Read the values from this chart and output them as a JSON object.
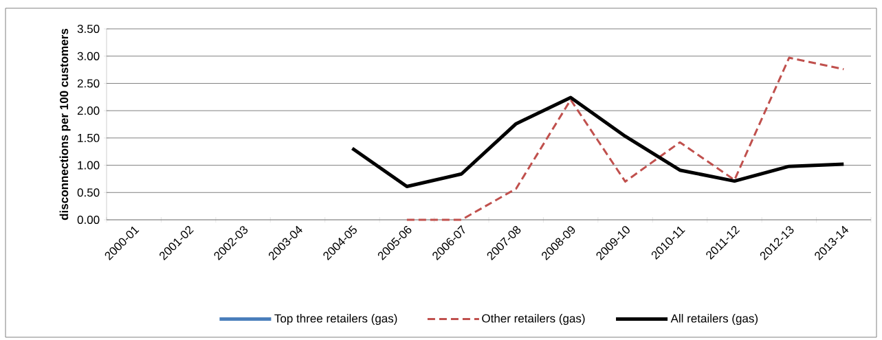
{
  "chart_data": {
    "type": "line",
    "ylabel": "disconnections per 100 customers",
    "categories": [
      "2000-01",
      "2001-02",
      "2002-03",
      "2003-04",
      "2004-05",
      "2005-06",
      "2006-07",
      "2007-08",
      "2008-09",
      "2009-10",
      "2010-11",
      "2011-12",
      "2012-13",
      "2013-14"
    ],
    "series": [
      {
        "name": "Top three retailers (gas)",
        "color": "#4a7ebb",
        "line_style": "solid",
        "values": [
          null,
          null,
          null,
          null,
          null,
          null,
          null,
          null,
          null,
          null,
          null,
          null,
          null,
          null
        ]
      },
      {
        "name": "Other retailers (gas)",
        "color": "#c0504d",
        "line_style": "dashed",
        "values": [
          null,
          null,
          null,
          null,
          null,
          0,
          0,
          0.57,
          2.2,
          0.7,
          1.42,
          0.73,
          2.97,
          2.76
        ]
      },
      {
        "name": "All retailers (gas)",
        "color": "#000000",
        "line_style": "solid",
        "values": [
          null,
          null,
          null,
          null,
          1.31,
          0.61,
          0.84,
          1.76,
          2.24,
          1.53,
          0.91,
          0.71,
          0.98,
          1.02
        ]
      }
    ],
    "ylim": [
      0,
      3.5
    ],
    "yticks": [
      {
        "value": 0,
        "label": "0.00"
      },
      {
        "value": 0.5,
        "label": "0.50"
      },
      {
        "value": 1,
        "label": "1.00"
      },
      {
        "value": 1.5,
        "label": "1.50"
      },
      {
        "value": 2,
        "label": "2.00"
      },
      {
        "value": 2.5,
        "label": "2.50"
      },
      {
        "value": 3,
        "label": "3.00"
      },
      {
        "value": 3.5,
        "label": "3.50"
      }
    ],
    "grid": "y",
    "legend": "bottom",
    "marker": "none"
  }
}
